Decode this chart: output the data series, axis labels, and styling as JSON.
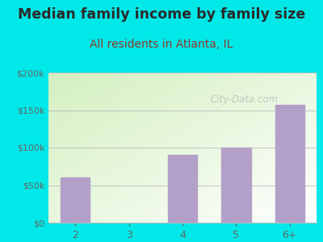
{
  "title": "Median family income by family size",
  "subtitle": "All residents in Atlanta, IL",
  "categories": [
    "2",
    "3",
    "4",
    "5",
    "6+"
  ],
  "values": [
    60000,
    0,
    90000,
    100000,
    157000
  ],
  "bar_color": "#b3a0c8",
  "bg_outer": "#00e8e8",
  "title_color": "#2a2a2a",
  "subtitle_color": "#8b3a2a",
  "tick_color": "#666666",
  "grid_color": "#bbbbbb",
  "ylim": [
    0,
    200000
  ],
  "yticks": [
    0,
    50000,
    100000,
    150000,
    200000
  ],
  "ytick_labels": [
    "$0",
    "$50k",
    "$100k",
    "$150k",
    "$200k"
  ],
  "watermark": "City-Data.com",
  "title_fontsize": 12.5,
  "subtitle_fontsize": 10
}
